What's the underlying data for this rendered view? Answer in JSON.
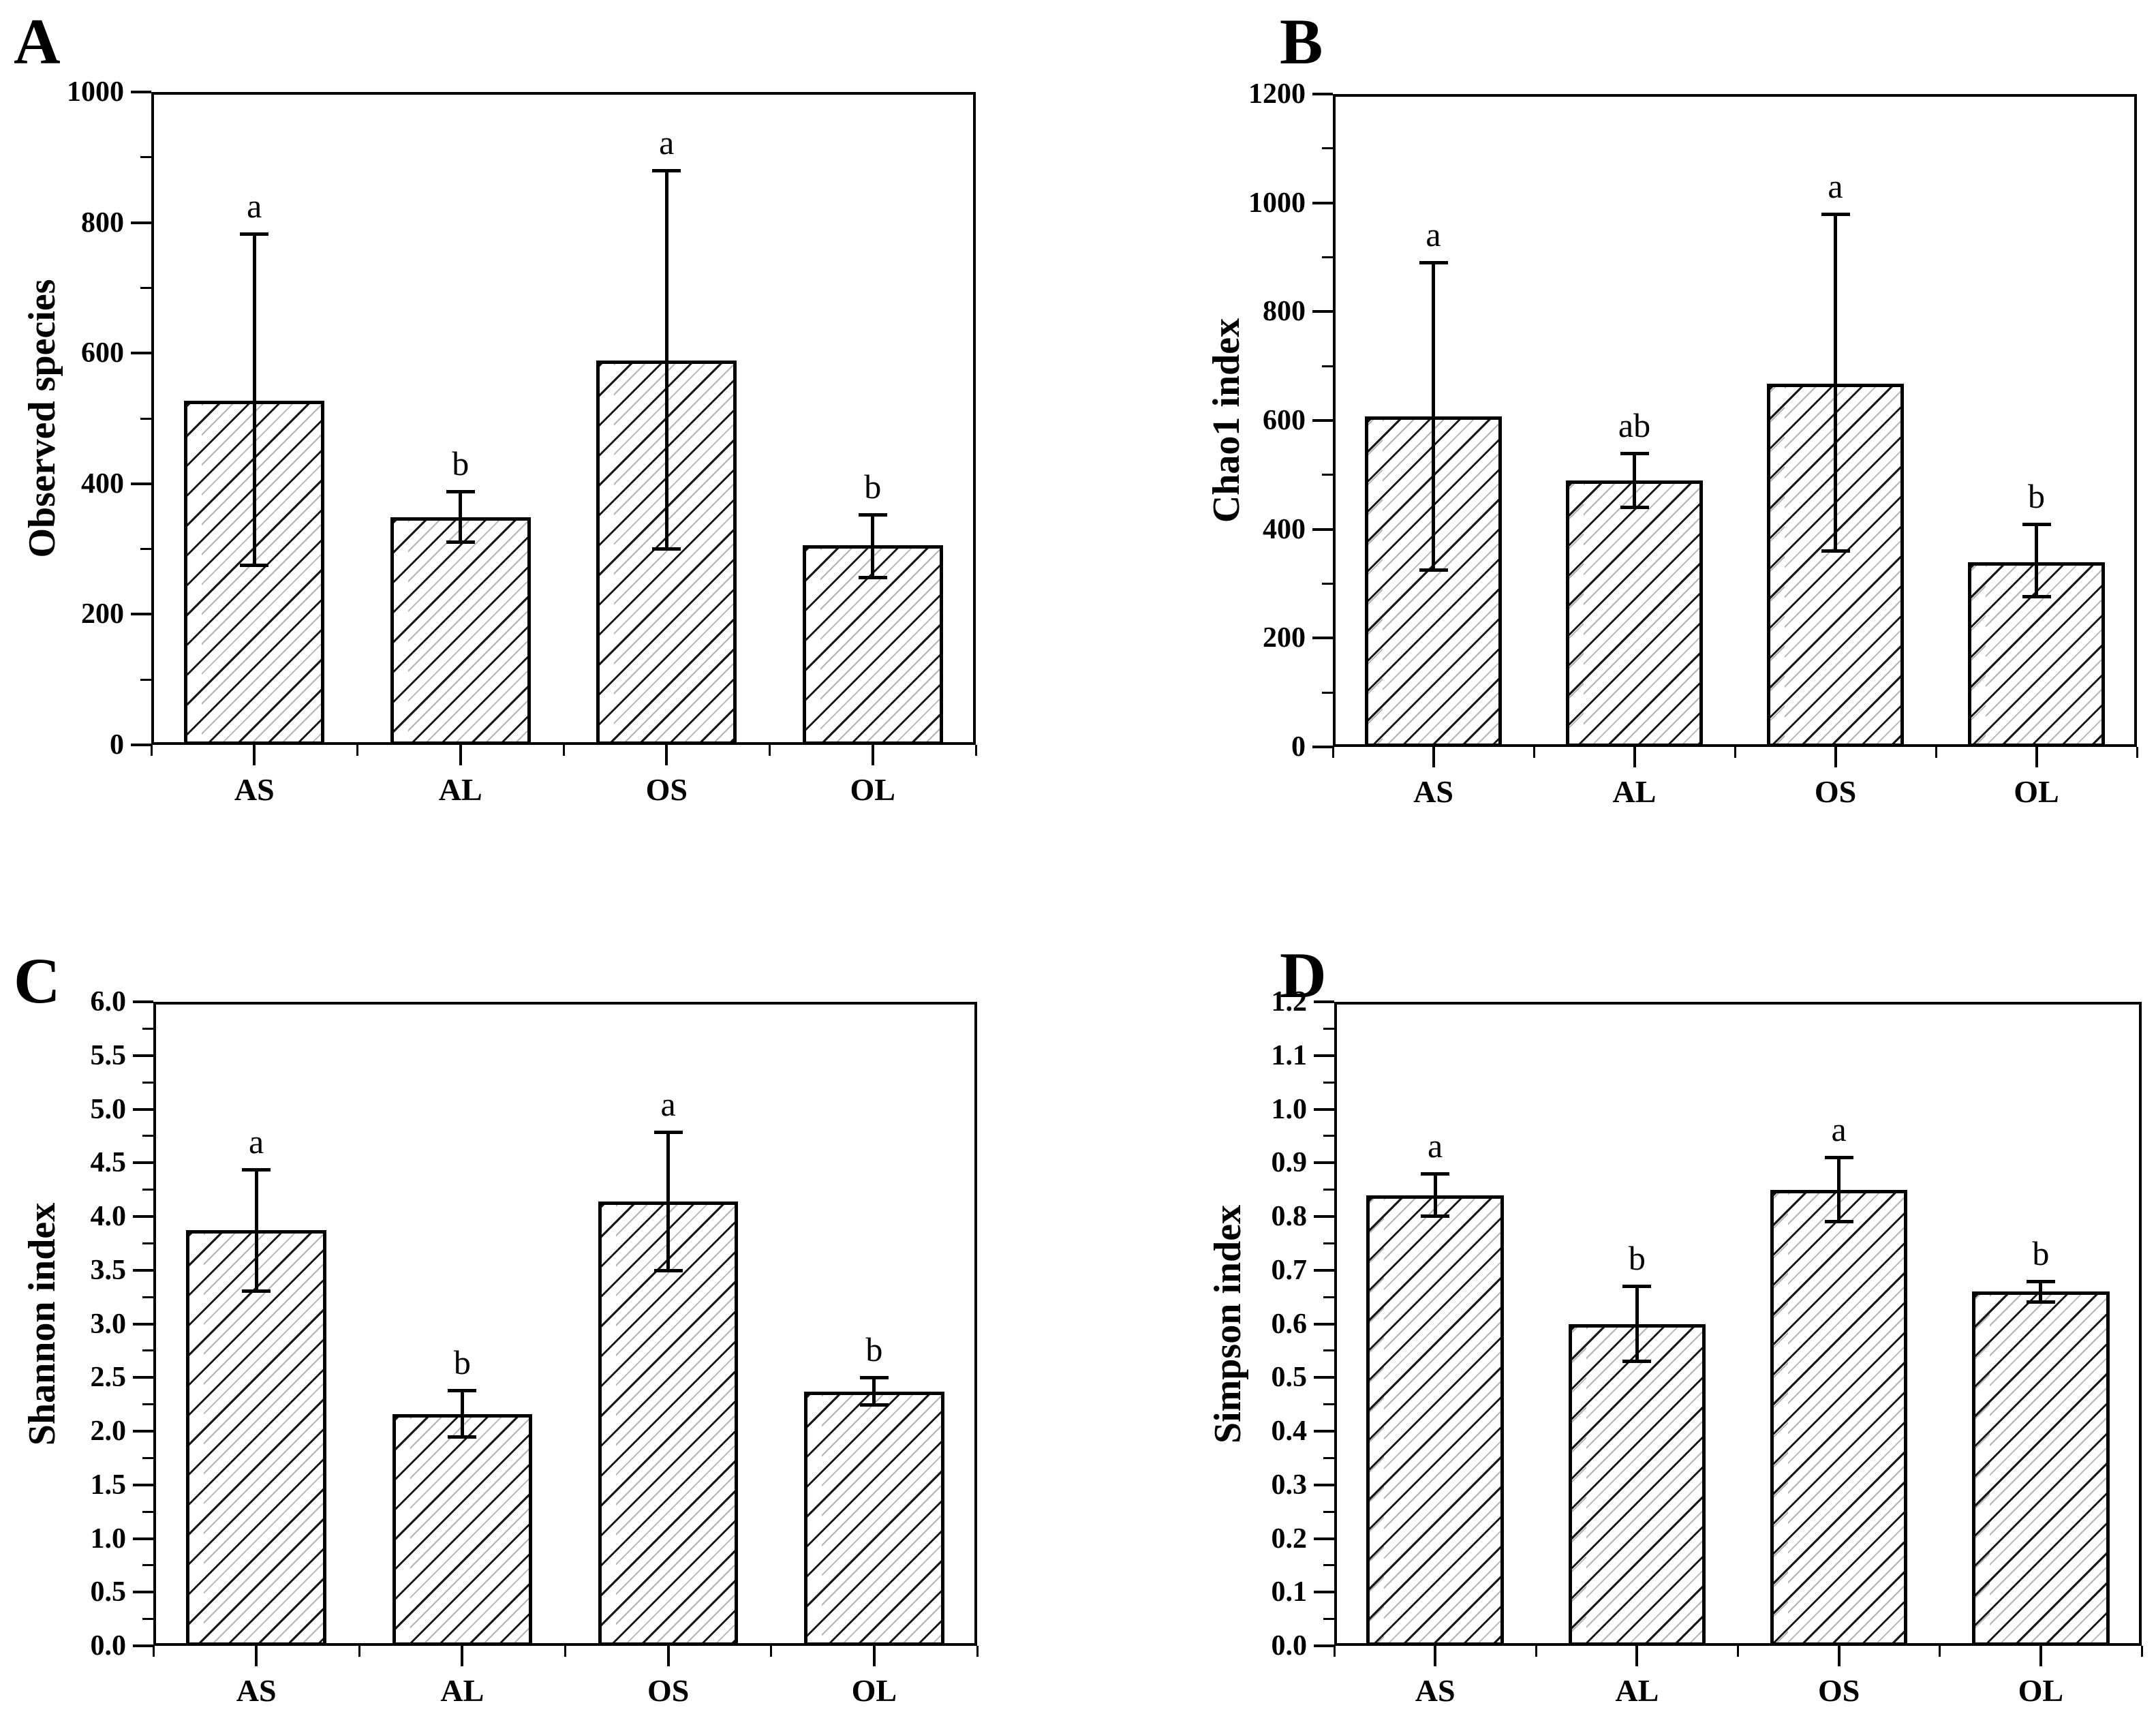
{
  "figure_title": "",
  "style": {
    "background": "#ffffff",
    "axis_color": "#000000",
    "bar_fill": "#ffffff",
    "bar_border": "#000000",
    "hatch_color": "#161616",
    "hatch_secondary_color": "#b4b4b4",
    "hatch_pattern": "forward-diagonal",
    "text_color": "#000000"
  },
  "chart_data": [
    {
      "id": "A",
      "type": "bar",
      "panel_label": "A",
      "title": "",
      "xlabel": "",
      "ylabel": "Observed species",
      "ylim": [
        0,
        1000
      ],
      "ytick_step": 200,
      "ytick_decimals": 0,
      "minor_ticks": true,
      "grid": false,
      "legend": "none",
      "categories": [
        "AS",
        "AL",
        "OS",
        "OL"
      ],
      "values": [
        527,
        349,
        589,
        306
      ],
      "err_low": [
        275,
        310,
        300,
        256
      ],
      "err_high": [
        783,
        388,
        880,
        353
      ],
      "sig_letters": [
        "a",
        "b",
        "a",
        "b"
      ]
    },
    {
      "id": "B",
      "type": "bar",
      "panel_label": "B",
      "title": "",
      "xlabel": "",
      "ylabel": "Chao1 index",
      "ylim": [
        0,
        1200
      ],
      "ytick_step": 200,
      "ytick_decimals": 0,
      "minor_ticks": true,
      "grid": false,
      "legend": "none",
      "categories": [
        "AS",
        "AL",
        "OS",
        "OL"
      ],
      "values": [
        608,
        490,
        668,
        340
      ],
      "err_low": [
        325,
        440,
        360,
        275
      ],
      "err_high": [
        890,
        540,
        980,
        410
      ],
      "sig_letters": [
        "a",
        "ab",
        "a",
        "b"
      ]
    },
    {
      "id": "C",
      "type": "bar",
      "panel_label": "C",
      "title": "",
      "xlabel": "",
      "ylabel": "Shannon index",
      "ylim": [
        0,
        6.0
      ],
      "ytick_step": 0.5,
      "ytick_decimals": 1,
      "minor_ticks": true,
      "grid": false,
      "legend": "none",
      "categories": [
        "AS",
        "AL",
        "OS",
        "OL"
      ],
      "values": [
        3.87,
        2.16,
        4.14,
        2.37
      ],
      "err_low": [
        3.3,
        1.94,
        3.49,
        2.24
      ],
      "err_high": [
        4.44,
        2.38,
        4.79,
        2.5
      ],
      "sig_letters": [
        "a",
        "b",
        "a",
        "b"
      ]
    },
    {
      "id": "D",
      "type": "bar",
      "panel_label": "D",
      "title": "",
      "xlabel": "",
      "ylabel": "Simpson index",
      "ylim": [
        0,
        1.2
      ],
      "ytick_step": 0.1,
      "ytick_decimals": 1,
      "minor_ticks": true,
      "grid": false,
      "legend": "none",
      "categories": [
        "AS",
        "AL",
        "OS",
        "OL"
      ],
      "values": [
        0.84,
        0.6,
        0.85,
        0.66
      ],
      "err_low": [
        0.8,
        0.53,
        0.79,
        0.64
      ],
      "err_high": [
        0.88,
        0.67,
        0.91,
        0.68
      ],
      "sig_letters": [
        "a",
        "b",
        "a",
        "b"
      ]
    }
  ]
}
